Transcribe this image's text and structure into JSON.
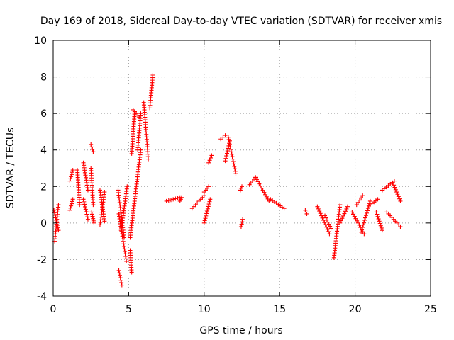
{
  "chart_data": {
    "type": "scatter",
    "title": "Day 169 of 2018, Sidereal Day-to-day VTEC variation (SDTVAR) for receiver xmis",
    "xlabel": "GPS time / hours",
    "ylabel": "SDTVAR / TECUs",
    "xlim": [
      0,
      25
    ],
    "ylim": [
      -4,
      10
    ],
    "xticks": [
      0,
      5,
      10,
      15,
      20,
      25
    ],
    "yticks": [
      -4,
      -2,
      0,
      2,
      4,
      6,
      8,
      10
    ],
    "grid": true,
    "legend": "none",
    "marker": "plus",
    "color": "#ff0000",
    "series": [
      {
        "name": "SDTVAR",
        "segments": [
          {
            "x": [
              0.1,
              0.35
            ],
            "y": [
              -1.0,
              1.0
            ]
          },
          {
            "x": [
              0.05,
              0.35
            ],
            "y": [
              0.7,
              -0.4
            ]
          },
          {
            "x": [
              1.1,
              1.3
            ],
            "y": [
              2.3,
              2.9
            ]
          },
          {
            "x": [
              1.1,
              1.3
            ],
            "y": [
              0.7,
              1.3
            ]
          },
          {
            "x": [
              1.6,
              1.75
            ],
            "y": [
              2.9,
              1.0
            ]
          },
          {
            "x": [
              2.0,
              2.3
            ],
            "y": [
              3.3,
              1.8
            ]
          },
          {
            "x": [
              2.0,
              2.3
            ],
            "y": [
              1.3,
              0.2
            ]
          },
          {
            "x": [
              2.5,
              2.65
            ],
            "y": [
              4.3,
              3.9
            ]
          },
          {
            "x": [
              2.5,
              2.65
            ],
            "y": [
              3.0,
              1.0
            ]
          },
          {
            "x": [
              2.55,
              2.7
            ],
            "y": [
              0.6,
              0.0
            ]
          },
          {
            "x": [
              3.1,
              3.4
            ],
            "y": [
              1.8,
              0.1
            ]
          },
          {
            "x": [
              3.1,
              3.4
            ],
            "y": [
              -0.1,
              1.7
            ]
          },
          {
            "x": [
              4.35,
              4.55
            ],
            "y": [
              -2.6,
              -3.4
            ]
          },
          {
            "x": [
              4.3,
              4.7
            ],
            "y": [
              1.8,
              -0.8
            ]
          },
          {
            "x": [
              4.35,
              4.85
            ],
            "y": [
              0.5,
              -2.1
            ]
          },
          {
            "x": [
              4.5,
              4.9
            ],
            "y": [
              -0.4,
              2.0
            ]
          },
          {
            "x": [
              5.1,
              5.2
            ],
            "y": [
              -1.5,
              -2.7
            ]
          },
          {
            "x": [
              5.1,
              5.8
            ],
            "y": [
              -0.8,
              4.0
            ]
          },
          {
            "x": [
              5.2,
              5.4
            ],
            "y": [
              3.8,
              6.1
            ]
          },
          {
            "x": [
              5.6,
              5.8
            ],
            "y": [
              4.0,
              6.0
            ]
          },
          {
            "x": [
              5.3,
              5.7
            ],
            "y": [
              6.2,
              5.8
            ]
          },
          {
            "x": [
              6.0,
              6.3
            ],
            "y": [
              6.6,
              3.5
            ]
          },
          {
            "x": [
              6.4,
              6.6
            ],
            "y": [
              6.3,
              8.1
            ]
          },
          {
            "x": [
              7.5,
              8.4
            ],
            "y": [
              1.2,
              1.4
            ]
          },
          {
            "x": [
              8.4,
              8.5
            ],
            "y": [
              1.2,
              1.4
            ]
          },
          {
            "x": [
              9.2,
              10.0
            ],
            "y": [
              0.8,
              1.5
            ]
          },
          {
            "x": [
              10.0,
              10.3
            ],
            "y": [
              1.7,
              2.0
            ]
          },
          {
            "x": [
              10.0,
              10.4
            ],
            "y": [
              0.0,
              1.3
            ]
          },
          {
            "x": [
              10.3,
              10.5
            ],
            "y": [
              3.3,
              3.7
            ]
          },
          {
            "x": [
              11.1,
              11.4
            ],
            "y": [
              4.6,
              4.8
            ]
          },
          {
            "x": [
              11.4,
              11.7
            ],
            "y": [
              3.4,
              4.5
            ]
          },
          {
            "x": [
              11.6,
              12.1
            ],
            "y": [
              4.7,
              2.7
            ]
          },
          {
            "x": [
              12.45,
              12.55
            ],
            "y": [
              -0.2,
              0.2
            ]
          },
          {
            "x": [
              12.4,
              12.5
            ],
            "y": [
              1.8,
              2.0
            ]
          },
          {
            "x": [
              13.0,
              13.4
            ],
            "y": [
              2.1,
              2.5
            ]
          },
          {
            "x": [
              13.4,
              14.3
            ],
            "y": [
              2.5,
              1.2
            ]
          },
          {
            "x": [
              14.4,
              15.3
            ],
            "y": [
              1.3,
              0.8
            ]
          },
          {
            "x": [
              16.7,
              16.8
            ],
            "y": [
              0.7,
              0.5
            ]
          },
          {
            "x": [
              17.5,
              18.3
            ],
            "y": [
              0.9,
              -0.6
            ]
          },
          {
            "x": [
              18.0,
              18.4
            ],
            "y": [
              0.4,
              -0.3
            ]
          },
          {
            "x": [
              18.6,
              19.0
            ],
            "y": [
              -1.9,
              1.0
            ]
          },
          {
            "x": [
              19.0,
              19.5
            ],
            "y": [
              0.0,
              0.9
            ]
          },
          {
            "x": [
              19.8,
              20.6
            ],
            "y": [
              0.6,
              -0.6
            ]
          },
          {
            "x": [
              20.1,
              20.5
            ],
            "y": [
              1.0,
              1.5
            ]
          },
          {
            "x": [
              20.4,
              21.0
            ],
            "y": [
              -0.5,
              1.2
            ]
          },
          {
            "x": [
              21.0,
              21.5
            ],
            "y": [
              1.0,
              1.3
            ]
          },
          {
            "x": [
              21.4,
              21.8
            ],
            "y": [
              0.6,
              -0.4
            ]
          },
          {
            "x": [
              21.8,
              22.6
            ],
            "y": [
              1.8,
              2.3
            ]
          },
          {
            "x": [
              22.5,
              23.0
            ],
            "y": [
              2.2,
              1.2
            ]
          },
          {
            "x": [
              22.1,
              23.0
            ],
            "y": [
              0.6,
              -0.2
            ]
          }
        ]
      }
    ]
  }
}
